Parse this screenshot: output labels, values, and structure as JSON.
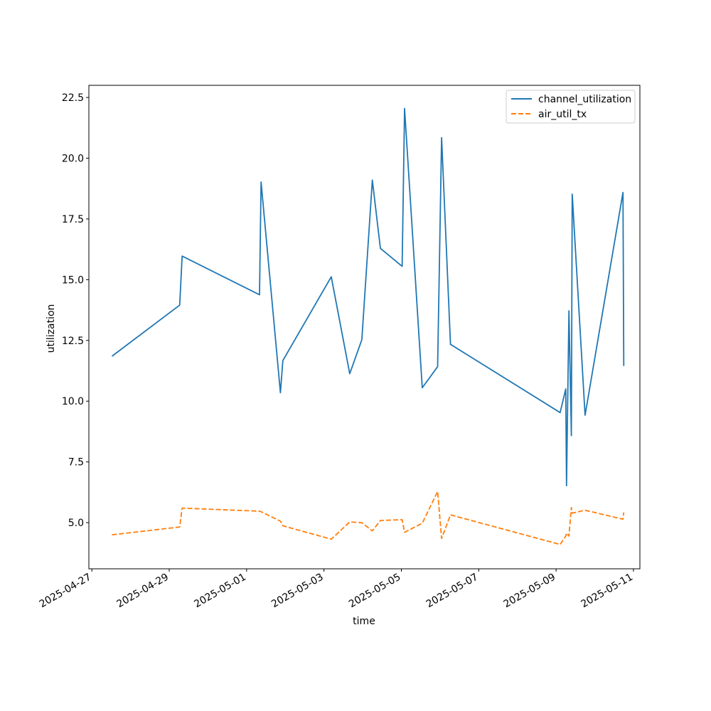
{
  "chart_data": {
    "type": "line",
    "xlabel": "time",
    "ylabel": "utilization",
    "x_axis_type": "date",
    "xlim": [
      "2025-04-26T22:09",
      "2025-05-11T04:00"
    ],
    "ylim": [
      3.1,
      23.0
    ],
    "x_ticks": [
      "2025-04-27",
      "2025-04-29",
      "2025-05-01",
      "2025-05-03",
      "2025-05-05",
      "2025-05-07",
      "2025-05-09",
      "2025-05-11"
    ],
    "y_ticks": [
      "5.0",
      "7.5",
      "10.0",
      "12.5",
      "15.0",
      "17.5",
      "20.0",
      "22.5"
    ],
    "grid": false,
    "legend_position": "top-right",
    "x": [
      "2025-04-27T12:30",
      "2025-04-29T06:30",
      "2025-04-29T08:00",
      "2025-05-01T08:00",
      "2025-05-01T09:00",
      "2025-05-01T21:00",
      "2025-05-01T22:30",
      "2025-05-03T04:30",
      "2025-05-03T16:00",
      "2025-05-03T23:30",
      "2025-05-04T06:00",
      "2025-05-04T11:00",
      "2025-05-05T00:30",
      "2025-05-05T02:00",
      "2025-05-05T13:00",
      "2025-05-05T22:30",
      "2025-05-06T01:00",
      "2025-05-06T06:30",
      "2025-05-09T02:30",
      "2025-05-09T06:00",
      "2025-05-09T06:30",
      "2025-05-09T08:00",
      "2025-05-09T09:30",
      "2025-05-09T10:00",
      "2025-05-09T18:00",
      "2025-05-10T17:30",
      "2025-05-10T18:00"
    ],
    "series": [
      {
        "name": "channel_utilization",
        "color": "#1f77b4",
        "style": "solid",
        "values": [
          11.85,
          13.95,
          15.97,
          14.38,
          19.02,
          10.35,
          11.67,
          15.12,
          11.13,
          12.53,
          19.1,
          16.29,
          15.55,
          22.05,
          10.55,
          11.42,
          20.85,
          12.34,
          9.53,
          10.5,
          6.52,
          13.72,
          8.58,
          18.52,
          9.42,
          18.59,
          11.45
        ]
      },
      {
        "name": "air_util_tx",
        "color": "#ff7f0e",
        "style": "dashed",
        "values": [
          4.5,
          4.82,
          5.6,
          5.47,
          5.45,
          5.06,
          4.87,
          4.32,
          5.03,
          5.0,
          4.66,
          5.09,
          5.12,
          4.6,
          4.98,
          6.28,
          4.35,
          5.32,
          4.1,
          4.45,
          4.57,
          4.45,
          5.62,
          5.39,
          5.51,
          5.14,
          5.42
        ]
      }
    ]
  }
}
